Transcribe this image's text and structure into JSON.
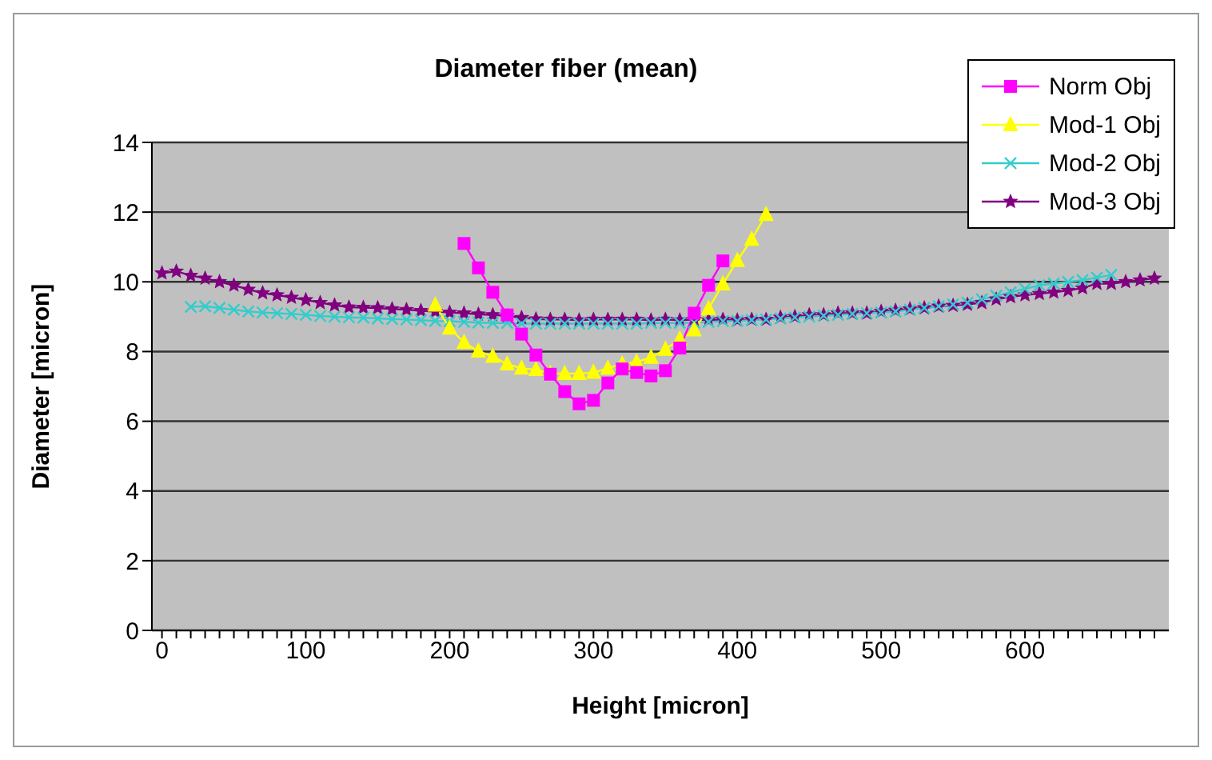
{
  "chart_data": {
    "type": "line",
    "title": "Diameter fiber (mean)",
    "xlabel": "Height  [micron]",
    "ylabel": "Diameter [micron]",
    "xlim": [
      -7,
      700
    ],
    "ylim": [
      0,
      14
    ],
    "yticks": [
      0,
      2,
      4,
      6,
      8,
      10,
      12,
      14
    ],
    "xticks": [
      0,
      {
        "value": 10,
        "label": null
      },
      {
        "value": 20,
        "label": null
      },
      {
        "value": 30,
        "label": null
      },
      {
        "value": 40,
        "label": null
      },
      {
        "value": 50,
        "label": null
      },
      {
        "value": 60,
        "label": null
      },
      {
        "value": 70,
        "label": null
      },
      {
        "value": 80,
        "label": null
      },
      {
        "value": 90,
        "label": null
      },
      100,
      {
        "value": 110,
        "label": null
      },
      {
        "value": 120,
        "label": null
      },
      {
        "value": 130,
        "label": null
      },
      {
        "value": 140,
        "label": null
      },
      {
        "value": 150,
        "label": null
      },
      {
        "value": 160,
        "label": null
      },
      {
        "value": 170,
        "label": null
      },
      {
        "value": 180,
        "label": null
      },
      {
        "value": 190,
        "label": null
      },
      200,
      {
        "value": 210,
        "label": null
      },
      {
        "value": 220,
        "label": null
      },
      {
        "value": 230,
        "label": null
      },
      {
        "value": 240,
        "label": null
      },
      {
        "value": 250,
        "label": null
      },
      {
        "value": 260,
        "label": null
      },
      {
        "value": 270,
        "label": null
      },
      {
        "value": 280,
        "label": null
      },
      {
        "value": 290,
        "label": null
      },
      300,
      {
        "value": 310,
        "label": null
      },
      {
        "value": 320,
        "label": null
      },
      {
        "value": 330,
        "label": null
      },
      {
        "value": 340,
        "label": null
      },
      {
        "value": 350,
        "label": null
      },
      {
        "value": 360,
        "label": null
      },
      {
        "value": 370,
        "label": null
      },
      {
        "value": 380,
        "label": null
      },
      {
        "value": 390,
        "label": null
      },
      400,
      {
        "value": 410,
        "label": null
      },
      {
        "value": 420,
        "label": null
      },
      {
        "value": 430,
        "label": null
      },
      {
        "value": 440,
        "label": null
      },
      {
        "value": 450,
        "label": null
      },
      {
        "value": 460,
        "label": null
      },
      {
        "value": 470,
        "label": null
      },
      {
        "value": 480,
        "label": null
      },
      {
        "value": 490,
        "label": null
      },
      500,
      {
        "value": 510,
        "label": null
      },
      {
        "value": 520,
        "label": null
      },
      {
        "value": 530,
        "label": null
      },
      {
        "value": 540,
        "label": null
      },
      {
        "value": 550,
        "label": null
      },
      {
        "value": 560,
        "label": null
      },
      {
        "value": 570,
        "label": null
      },
      {
        "value": 580,
        "label": null
      },
      {
        "value": 590,
        "label": null
      },
      600,
      {
        "value": 610,
        "label": null
      },
      {
        "value": 620,
        "label": null
      },
      {
        "value": 630,
        "label": null
      },
      {
        "value": 640,
        "label": null
      },
      {
        "value": 650,
        "label": null
      },
      {
        "value": 660,
        "label": null
      },
      {
        "value": 670,
        "label": null
      },
      {
        "value": 680,
        "label": null
      },
      {
        "value": 690,
        "label": null
      }
    ],
    "grid": "y",
    "legend": "top right",
    "series": [
      {
        "name": "Norm Obj",
        "color": "#ff00ff",
        "marker": "square",
        "x": [
          210,
          220,
          230,
          240,
          250,
          260,
          270,
          280,
          290,
          300,
          310,
          320,
          330,
          340,
          350,
          360,
          370,
          380,
          390
        ],
        "values": [
          11.1,
          10.4,
          9.7,
          9.05,
          8.5,
          7.9,
          7.35,
          6.85,
          6.5,
          6.6,
          7.1,
          7.5,
          7.4,
          7.3,
          7.45,
          8.1,
          9.1,
          9.9,
          10.6
        ]
      },
      {
        "name": "Mod-1 Obj",
        "color": "#ffff00",
        "marker": "triangle",
        "x": [
          190,
          200,
          210,
          220,
          230,
          240,
          250,
          260,
          270,
          280,
          290,
          300,
          310,
          320,
          330,
          340,
          350,
          360,
          370,
          380,
          390,
          400,
          410,
          420
        ],
        "values": [
          9.33,
          8.67,
          8.26,
          8.01,
          7.86,
          7.64,
          7.52,
          7.48,
          7.37,
          7.37,
          7.37,
          7.4,
          7.52,
          7.64,
          7.7,
          7.83,
          8.06,
          8.36,
          8.62,
          9.23,
          9.94,
          10.61,
          11.22,
          11.93
        ]
      },
      {
        "name": "Mod-2 Obj",
        "color": "#33cccc",
        "marker": "cross",
        "x": [
          20,
          30,
          40,
          50,
          60,
          70,
          80,
          90,
          100,
          110,
          120,
          130,
          140,
          150,
          160,
          170,
          180,
          190,
          200,
          210,
          220,
          230,
          240,
          250,
          260,
          270,
          280,
          290,
          300,
          310,
          320,
          330,
          340,
          350,
          360,
          370,
          380,
          390,
          400,
          410,
          420,
          430,
          440,
          450,
          460,
          470,
          480,
          490,
          500,
          510,
          520,
          530,
          540,
          550,
          560,
          570,
          580,
          590,
          600,
          610,
          620,
          630,
          640,
          650,
          660
        ],
        "values": [
          9.28,
          9.3,
          9.25,
          9.2,
          9.15,
          9.12,
          9.1,
          9.08,
          9.05,
          9.02,
          9.0,
          8.98,
          8.97,
          8.95,
          8.93,
          8.92,
          8.9,
          8.88,
          8.87,
          8.85,
          8.83,
          8.82,
          8.82,
          8.8,
          8.8,
          8.8,
          8.8,
          8.8,
          8.8,
          8.8,
          8.8,
          8.8,
          8.82,
          8.82,
          8.82,
          8.83,
          8.85,
          8.87,
          8.88,
          8.9,
          8.92,
          8.95,
          8.98,
          9.0,
          9.03,
          9.05,
          9.08,
          9.1,
          9.12,
          9.15,
          9.2,
          9.25,
          9.3,
          9.35,
          9.4,
          9.5,
          9.6,
          9.7,
          9.8,
          9.9,
          9.95,
          10.0,
          10.05,
          10.12,
          10.2
        ]
      },
      {
        "name": "Mod-3 Obj",
        "color": "#800080",
        "marker": "star",
        "x": [
          0,
          10,
          20,
          30,
          40,
          50,
          60,
          70,
          80,
          90,
          100,
          110,
          120,
          130,
          140,
          150,
          160,
          170,
          180,
          190,
          200,
          210,
          220,
          230,
          240,
          250,
          260,
          270,
          280,
          290,
          300,
          310,
          320,
          330,
          340,
          350,
          360,
          370,
          380,
          390,
          400,
          410,
          420,
          430,
          440,
          450,
          460,
          470,
          480,
          490,
          500,
          510,
          520,
          530,
          540,
          550,
          560,
          570,
          580,
          590,
          600,
          610,
          620,
          630,
          640,
          650,
          660,
          670,
          680,
          690
        ],
        "values": [
          10.25,
          10.3,
          10.18,
          10.1,
          10.0,
          9.9,
          9.78,
          9.68,
          9.62,
          9.55,
          9.48,
          9.4,
          9.33,
          9.27,
          9.26,
          9.25,
          9.22,
          9.2,
          9.17,
          9.15,
          9.12,
          9.1,
          9.07,
          9.05,
          9.02,
          8.97,
          8.93,
          8.92,
          8.92,
          8.9,
          8.92,
          8.92,
          8.92,
          8.92,
          8.9,
          8.92,
          8.9,
          8.92,
          8.9,
          8.92,
          8.9,
          8.92,
          8.92,
          8.98,
          9.0,
          9.05,
          9.05,
          9.1,
          9.1,
          9.1,
          9.15,
          9.18,
          9.22,
          9.25,
          9.3,
          9.32,
          9.35,
          9.4,
          9.5,
          9.57,
          9.62,
          9.66,
          9.7,
          9.75,
          9.82,
          9.95,
          9.95,
          10.0,
          10.05,
          10.1
        ]
      }
    ]
  }
}
